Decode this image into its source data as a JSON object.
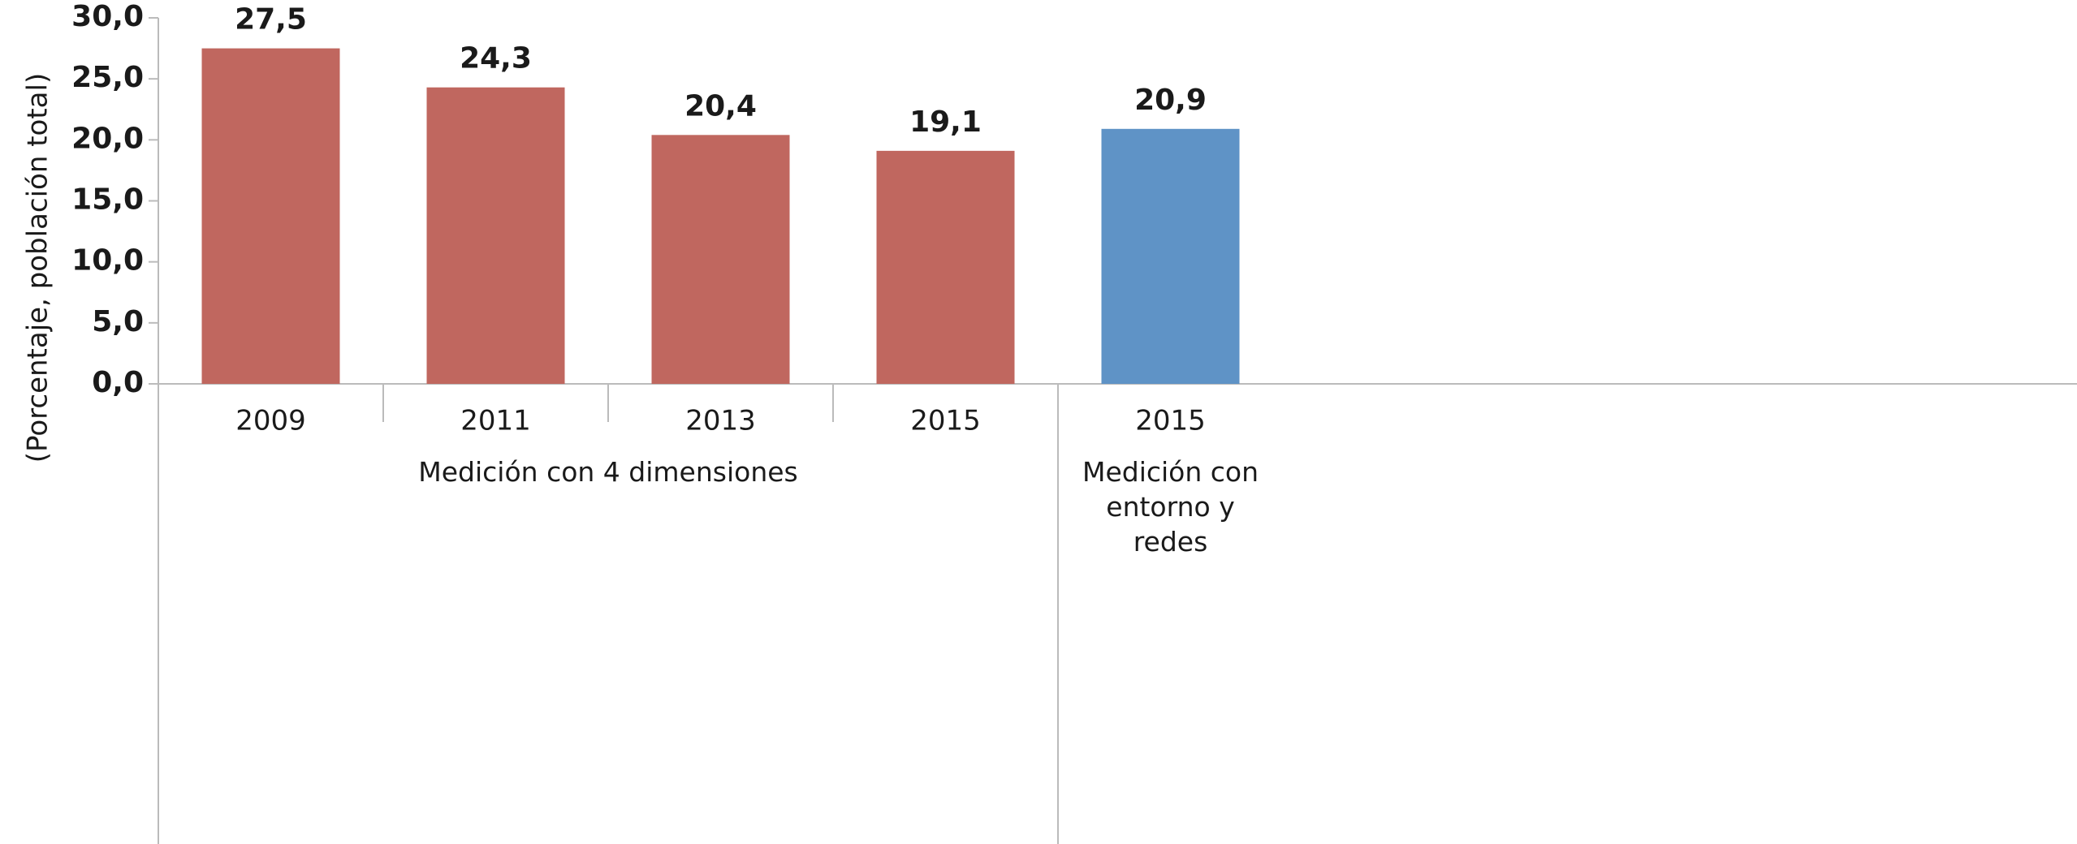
{
  "chart_data": {
    "type": "bar",
    "ylabel": "(Porcentaje, población total)",
    "ylim": [
      0,
      30
    ],
    "yticks": [
      {
        "value": 0,
        "label": "0,0"
      },
      {
        "value": 5,
        "label": "5,0"
      },
      {
        "value": 10,
        "label": "10,0"
      },
      {
        "value": 15,
        "label": "15,0"
      },
      {
        "value": 20,
        "label": "20,0"
      },
      {
        "value": 25,
        "label": "25,0"
      },
      {
        "value": 30,
        "label": "30,0"
      }
    ],
    "grid": false,
    "groups": [
      {
        "label": "Medición con 4 dimensiones",
        "color": "#c0675f",
        "categories": [
          "2009",
          "2011",
          "2013",
          "2015"
        ],
        "values": [
          27.5,
          24.3,
          20.4,
          19.1
        ],
        "value_labels": [
          "27,5",
          "24,3",
          "20,4",
          "19,1"
        ]
      },
      {
        "label": "Medición con entorno y redes",
        "color": "#5f93c6",
        "categories": [
          "2015"
        ],
        "values": [
          20.9
        ],
        "value_labels": [
          "20,9"
        ]
      }
    ]
  }
}
